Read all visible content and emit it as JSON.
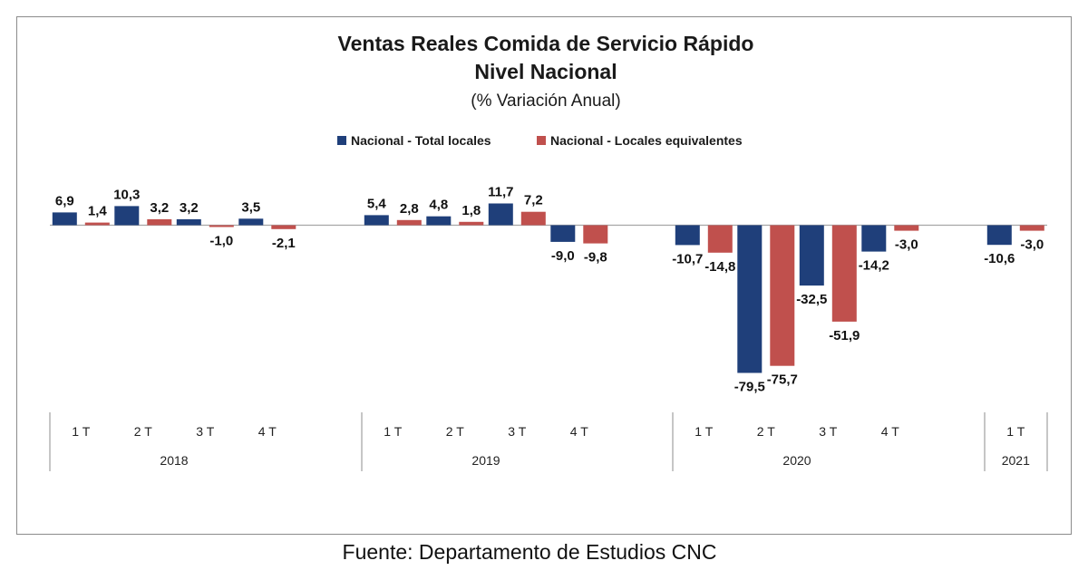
{
  "chart_data": {
    "type": "bar",
    "title": "Ventas Reales Comida de Servicio Rápido",
    "title_line2": "Nivel Nacional",
    "subtitle": "(% Variación Anual)",
    "source": "Fuente: Departamento de Estudios CNC",
    "legend_position": "top",
    "grid": false,
    "ylim": [
      -85,
      15
    ],
    "groups": [
      {
        "year": "2018",
        "quarters": [
          "1 T",
          "2 T",
          "3 T",
          "4 T"
        ]
      },
      {
        "year": "2019",
        "quarters": [
          "1 T",
          "2 T",
          "3 T",
          "4 T"
        ]
      },
      {
        "year": "2020",
        "quarters": [
          "1 T",
          "2 T",
          "3 T",
          "4 T"
        ]
      },
      {
        "year": "2021",
        "quarters": [
          "1 T"
        ]
      }
    ],
    "series": [
      {
        "name": "Nacional - Total locales",
        "color": "#1f3f7a",
        "values": [
          6.9,
          10.3,
          3.2,
          3.5,
          5.4,
          4.8,
          11.7,
          -9.0,
          -10.7,
          -79.5,
          -32.5,
          -14.2,
          -10.6
        ],
        "labels": [
          "6,9",
          "10,3",
          "3,2",
          "3,5",
          "5,4",
          "4,8",
          "11,7",
          "-9,0",
          "-10,7",
          "-79,5",
          "-32,5",
          "-14,2",
          "-10,6"
        ]
      },
      {
        "name": "Nacional - Locales equivalentes",
        "color": "#c0504d",
        "values": [
          1.4,
          3.2,
          -1.0,
          -2.1,
          2.8,
          1.8,
          7.2,
          -9.8,
          -14.8,
          -75.7,
          -51.9,
          -3.0,
          -3.0
        ],
        "labels": [
          "1,4",
          "3,2",
          "-1,0",
          "-2,1",
          "2,8",
          "1,8",
          "7,2",
          "-9,8",
          "-14,8",
          "-75,7",
          "-51,9",
          "-3,0",
          "-3,0"
        ]
      }
    ]
  }
}
